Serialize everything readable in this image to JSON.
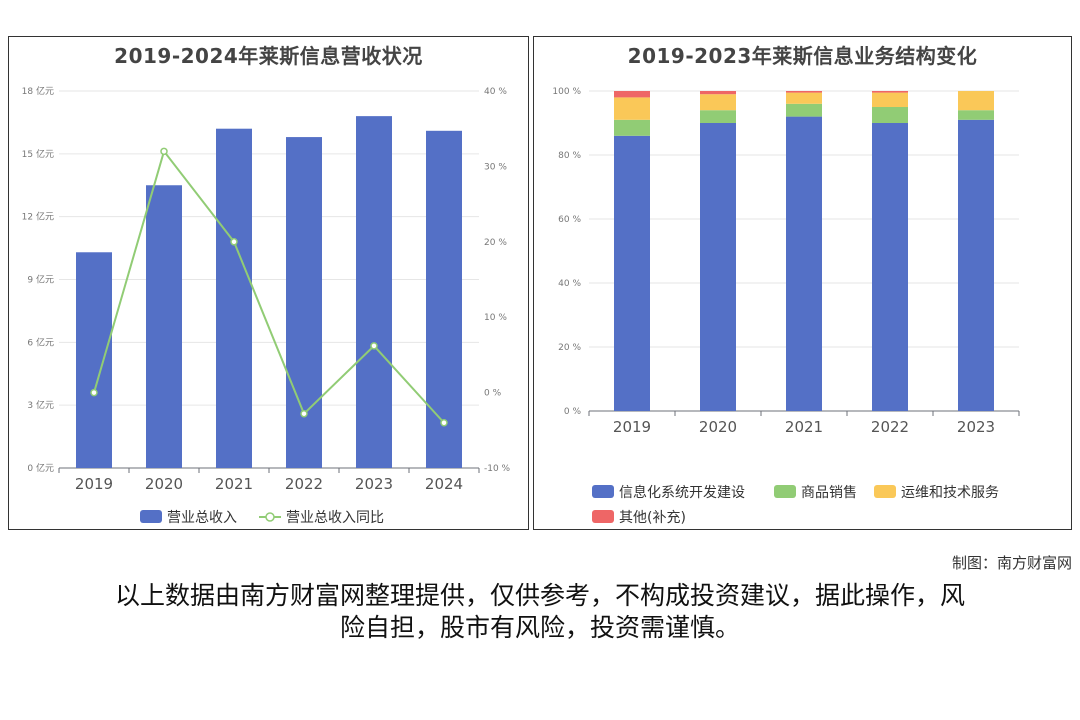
{
  "footer": {
    "credit": "制图：南方财富网",
    "disclaimer_line1": "以上数据由南方财富网整理提供，仅供参考，不构成投资建议，据此操作，风",
    "disclaimer_line2": "险自担，股市有风险，投资需谨慎。"
  },
  "chart_data": [
    {
      "type": "bar",
      "title": "2019-2024年莱斯信息营收状况",
      "categories": [
        "2019",
        "2020",
        "2021",
        "2022",
        "2023",
        "2024"
      ],
      "y_left": {
        "ylim": [
          0,
          18
        ],
        "ticks": [
          0,
          3,
          6,
          9,
          12,
          15,
          18
        ],
        "tick_labels": [
          "0 亿元",
          "3 亿元",
          "6 亿元",
          "9 亿元",
          "12 亿元",
          "15 亿元",
          "18 亿元"
        ]
      },
      "y_right": {
        "ylim": [
          -10,
          40
        ],
        "ticks": [
          -10,
          0,
          10,
          20,
          30,
          40
        ],
        "tick_labels": [
          "-10 %",
          "0 %",
          "10 %",
          "20 %",
          "30 %",
          "40 %"
        ]
      },
      "series": [
        {
          "name": "营业总收入",
          "kind": "bar",
          "axis": "left",
          "color": "#5470c6",
          "values": [
            10.3,
            13.5,
            16.2,
            15.8,
            16.8,
            16.1
          ]
        },
        {
          "name": "营业总收入同比",
          "kind": "line",
          "axis": "right",
          "color": "#91cc75",
          "values": [
            0,
            32,
            20,
            -2.8,
            6.2,
            -4
          ]
        }
      ],
      "grid": true,
      "legend": "bottom"
    },
    {
      "type": "bar",
      "stacked": true,
      "title": "2019-2023年莱斯信息业务结构变化",
      "categories": [
        "2019",
        "2020",
        "2021",
        "2022",
        "2023"
      ],
      "y": {
        "ylim": [
          0,
          100
        ],
        "ticks": [
          0,
          20,
          40,
          60,
          80,
          100
        ],
        "tick_labels": [
          "0 %",
          "20 %",
          "40 %",
          "60 %",
          "80 %",
          "100 %"
        ]
      },
      "series": [
        {
          "name": "信息化系统开发建设",
          "color": "#5470c6",
          "values": [
            86,
            90,
            92,
            90,
            91
          ]
        },
        {
          "name": "商品销售",
          "color": "#91cc75",
          "values": [
            5,
            4,
            4,
            5,
            3
          ]
        },
        {
          "name": "运维和技术服务",
          "color": "#fac858",
          "values": [
            7,
            5,
            3.5,
            4.5,
            6
          ]
        },
        {
          "name": "其他(补充)",
          "color": "#ee6666",
          "values": [
            2,
            1,
            0.5,
            0.5,
            0
          ]
        }
      ],
      "grid": true,
      "legend": "bottom"
    }
  ]
}
